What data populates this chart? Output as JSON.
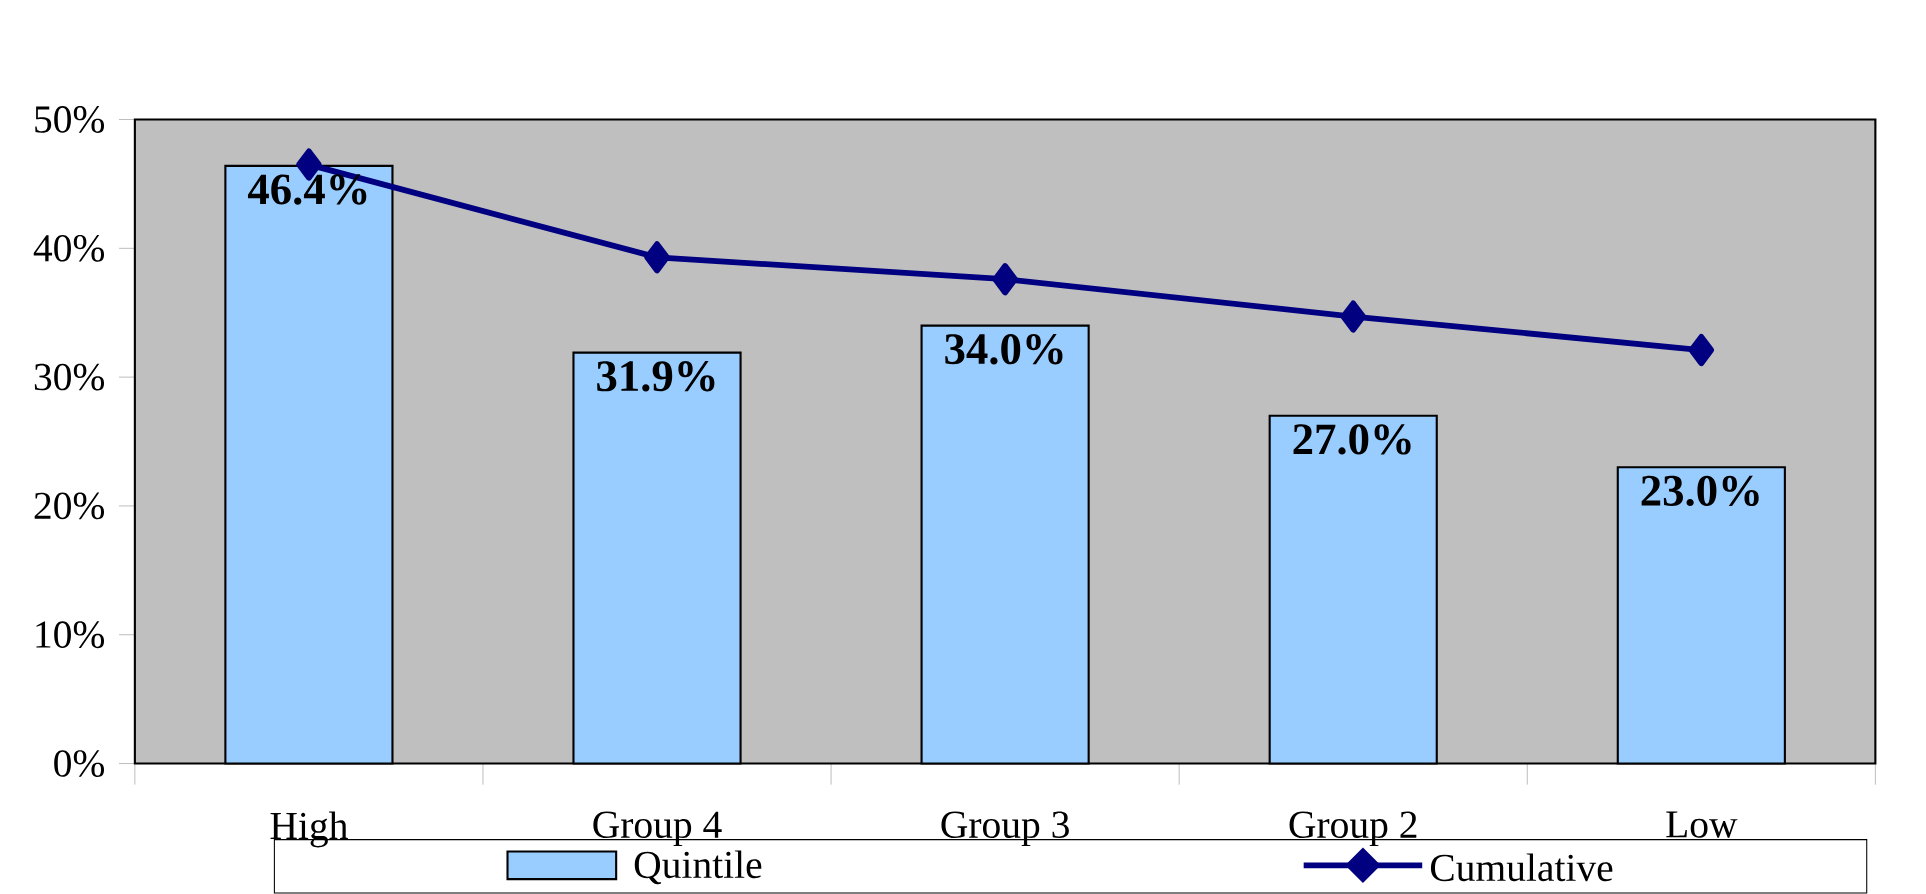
{
  "chart_data": {
    "type": "bar",
    "categories": [
      "High",
      "Group 4",
      "Group 3",
      "Group 2",
      "Low"
    ],
    "series": [
      {
        "name": "Quintile",
        "color": "#99ccff",
        "values": [
          46.4,
          31.9,
          34.0,
          27.0,
          23.0
        ],
        "value_labels": [
          "46.4%",
          "31.9%",
          "34.0%",
          "27.0%",
          "23.0%"
        ]
      },
      {
        "name": "Cumulative",
        "type": "line",
        "color": "#000080",
        "marker": "diamond",
        "line_style": "solid",
        "values": [
          46.5,
          39.3,
          37.6,
          34.7,
          32.1
        ]
      }
    ],
    "ylim": [
      0,
      50
    ],
    "yticks": [
      {
        "value": 0,
        "label": "0%"
      },
      {
        "value": 10,
        "label": "10%"
      },
      {
        "value": 20,
        "label": "20%"
      },
      {
        "value": 30,
        "label": "30%"
      },
      {
        "value": 40,
        "label": "40%"
      },
      {
        "value": 50,
        "label": "50%"
      }
    ],
    "legend": "bottom"
  }
}
